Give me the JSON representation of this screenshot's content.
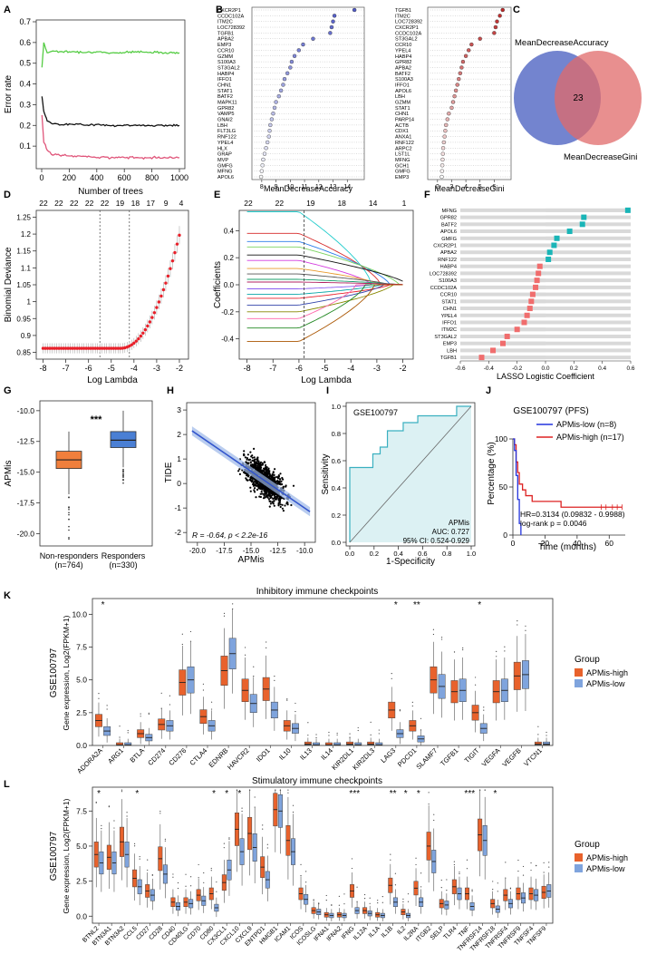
{
  "panels": {
    "A": {
      "label": "A",
      "chart_data": {
        "type": "line",
        "xlabel": "Number of trees",
        "ylabel": "Error rate",
        "xlim": [
          0,
          1000
        ],
        "ylim": [
          0,
          0.7
        ],
        "xticks": [
          "0",
          "200",
          "400",
          "600",
          "800",
          "1000"
        ],
        "yticks": [
          "0.1",
          "0.2",
          "0.3",
          "0.4",
          "0.5",
          "0.6",
          "0.7"
        ],
        "series": [
          {
            "name": "green",
            "color": "#55cc44",
            "values": [
              [
                2,
                0.48
              ],
              [
                15,
                0.6
              ],
              [
                40,
                0.55
              ],
              [
                80,
                0.56
              ],
              [
                150,
                0.555
              ],
              [
                300,
                0.555
              ],
              [
                500,
                0.55
              ],
              [
                700,
                0.555
              ],
              [
                1000,
                0.55
              ]
            ]
          },
          {
            "name": "black",
            "color": "#111111",
            "values": [
              [
                2,
                0.34
              ],
              [
                15,
                0.27
              ],
              [
                40,
                0.22
              ],
              [
                80,
                0.21
              ],
              [
                150,
                0.205
              ],
              [
                300,
                0.205
              ],
              [
                500,
                0.2
              ],
              [
                700,
                0.2
              ],
              [
                1000,
                0.2
              ]
            ]
          },
          {
            "name": "red",
            "color": "#e0557a",
            "values": [
              [
                2,
                0.25
              ],
              [
                15,
                0.12
              ],
              [
                40,
                0.08
              ],
              [
                80,
                0.06
              ],
              [
                150,
                0.055
              ],
              [
                300,
                0.05
              ],
              [
                500,
                0.045
              ],
              [
                700,
                0.045
              ],
              [
                1000,
                0.045
              ]
            ]
          }
        ]
      }
    },
    "B1": {
      "label": "B",
      "chart_data": {
        "type": "scatter",
        "xlabel": "MeanDecreaseAccuracy",
        "xlim": [
          7.5,
          15
        ],
        "xticks": [
          "8",
          "9",
          "10",
          "11",
          "12",
          "13",
          "14"
        ],
        "genes": [
          "CXCR2P1",
          "CCDC102A",
          "ITM2C",
          "LOC728392",
          "TGFB1",
          "APBA2",
          "EMP3",
          "CCR10",
          "GZMM",
          "S100A3",
          "ST3GAL2",
          "HABP4",
          "IFFO1",
          "CHN1",
          "STAT1",
          "BATF2",
          "MAPK11",
          "GPR82",
          "VAMP5",
          "GNAI2",
          "LBH",
          "FLT3LG",
          "RNF122",
          "YPEL4",
          "HLX",
          "GRAP",
          "MVP",
          "GMFG",
          "MFNG",
          "APOL6"
        ],
        "values": [
          14.5,
          13.1,
          13,
          12.9,
          12.8,
          11.6,
          10.9,
          10.6,
          10.3,
          10.1,
          10,
          9.8,
          9.6,
          9.5,
          9.35,
          9.2,
          9,
          8.9,
          8.8,
          8.7,
          8.6,
          8.55,
          8.5,
          8.4,
          8.3,
          8.2,
          8.1,
          8.05,
          8,
          7.95
        ]
      }
    },
    "B2": {
      "chart_data": {
        "type": "scatter",
        "xlabel": "MeanDecreaseGini",
        "xlim": [
          1.5,
          7
        ],
        "xticks": [
          "2",
          "3",
          "4",
          "5",
          "6"
        ],
        "genes": [
          "TGFB1",
          "ITM2C",
          "LOC728392",
          "CXCR2P1",
          "CCDC102A",
          "ST3GAL2",
          "CCR10",
          "YPEL4",
          "HABP4",
          "GPR82",
          "APBA2",
          "BATF2",
          "S100A3",
          "IFFO1",
          "APOL6",
          "LBH",
          "GZMM",
          "STAT1",
          "CHN1",
          "PARP14",
          "ACTB",
          "CDX1",
          "ANXA1",
          "RNF122",
          "ARPC2",
          "LST1L",
          "MFNG",
          "GCH1",
          "GMFG",
          "EMP3"
        ],
        "values": [
          6.6,
          6.4,
          6.2,
          6.1,
          6,
          5,
          4.4,
          4.2,
          4,
          3.8,
          3.7,
          3.6,
          3.5,
          3.4,
          3.3,
          3.2,
          3.1,
          3,
          2.8,
          2.7,
          2.6,
          2.55,
          2.5,
          2.45,
          2.4,
          2.38,
          2.36,
          2.34,
          2.32,
          2.3
        ]
      }
    },
    "C": {
      "label": "C",
      "chart_data": {
        "type": "venn",
        "sets": [
          "MeanDecreaseAccuracy",
          "MeanDecreaseGini"
        ],
        "intersection": "23"
      }
    },
    "D": {
      "label": "D",
      "chart_data": {
        "type": "scatter",
        "xlabel": "Log Lambda",
        "ylabel": "Binomial Deviance",
        "xlim": [
          -8.3,
          -1.6
        ],
        "ylim": [
          0.83,
          1.27
        ],
        "xticks": [
          "-8",
          "-7",
          "-6",
          "-5",
          "-4",
          "-3",
          "-2"
        ],
        "yticks": [
          "0.85",
          "0.9",
          "0.95",
          "1",
          "1.05",
          "1.1",
          "1.15",
          "1.2",
          "1.25"
        ],
        "top_ticks": [
          "22",
          "22",
          "22",
          "22",
          "22",
          "19",
          "18",
          "17",
          "9",
          "4"
        ],
        "vlines": [
          -5.5,
          -4.2
        ]
      }
    },
    "E": {
      "label": "E",
      "chart_data": {
        "type": "line",
        "xlabel": "Log Lambda",
        "ylabel": "Coefficients",
        "xlim": [
          -8.3,
          -1.6
        ],
        "ylim": [
          -0.55,
          0.55
        ],
        "xticks": [
          "-8",
          "-7",
          "-6",
          "-5",
          "-4",
          "-3",
          "-2"
        ],
        "yticks": [
          "-0.4",
          "-0.2",
          "0.0",
          "0.2",
          "0.4"
        ],
        "top_ticks": [
          "22",
          "22",
          "19",
          "18",
          "14",
          "1"
        ],
        "vline": -5.8
      }
    },
    "F": {
      "label": "F",
      "chart_data": {
        "type": "bar",
        "xlabel": "LASSO Logistic Coefficient",
        "xlim": [
          -0.6,
          0.6
        ],
        "xticks": [
          "-0.6",
          "-0.4",
          "-0.2",
          "0.0",
          "0.2",
          "0.4",
          "0.6"
        ],
        "genes": [
          "MFNG",
          "GPR82",
          "BATF2",
          "APOL6",
          "GMFG",
          "CXCR2P1",
          "APBA2",
          "RNF122",
          "HABP4",
          "LOC728392",
          "S100A3",
          "CCDC102A",
          "CCR10",
          "STAT1",
          "CHN1",
          "YPEL4",
          "IFFO1",
          "ITM2C",
          "ST3GAL2",
          "EMP3",
          "LBH",
          "TGFB1"
        ],
        "values": [
          0.58,
          0.27,
          0.26,
          0.17,
          0.08,
          0.06,
          0.03,
          0.02,
          -0.04,
          -0.05,
          -0.06,
          -0.07,
          -0.09,
          -0.1,
          -0.11,
          -0.13,
          -0.15,
          -0.2,
          -0.27,
          -0.3,
          -0.37,
          -0.45
        ]
      }
    },
    "G": {
      "label": "G",
      "chart_data": {
        "type": "box",
        "ylabel": "APMis",
        "ylim": [
          -21,
          -9.2
        ],
        "yticks": [
          "-10.0",
          "-12.5",
          "-15.0",
          "-17.5",
          "-20.0"
        ],
        "categories": [
          "Non-responders",
          "Responders"
        ],
        "ns": [
          "(n=764)",
          "(n=330)"
        ],
        "significance": "***",
        "boxes": [
          {
            "q1": -14.7,
            "median": -14.0,
            "q3": -13.3,
            "lo": -16.8,
            "hi": -11.7,
            "color": "#f07f3c"
          },
          {
            "q1": -13.0,
            "median": -12.4,
            "q3": -11.7,
            "lo": -14.6,
            "hi": -10.0,
            "color": "#4a7fd4"
          }
        ]
      }
    },
    "H": {
      "label": "H",
      "chart_data": {
        "type": "scatter",
        "xlabel": "APMis",
        "ylabel": "TIDE",
        "xlim": [
          -21,
          -9
        ],
        "ylim": [
          -2.4,
          3.3
        ],
        "xticks": [
          "-20.0",
          "-17.5",
          "-15.0",
          "-12.5",
          "-10.0"
        ],
        "yticks": [
          "-2",
          "-1",
          "0",
          "1",
          "2",
          "3"
        ],
        "annotation": "R = -0.64, p < 2.2e-16",
        "fit": {
          "slope": -0.3,
          "intercept": -4.0
        }
      }
    },
    "I": {
      "label": "I",
      "chart_data": {
        "type": "roc",
        "title": "GSE100797",
        "xlabel": "1-Specificity",
        "ylabel": "Sensitivity",
        "xticks": [
          "0.0",
          "0.2",
          "0.4",
          "0.6",
          "0.8",
          "1.0"
        ],
        "yticks": [
          "0.0",
          "0.2",
          "0.4",
          "0.6",
          "0.8",
          "1.0"
        ],
        "legend_name": "APMis",
        "auc": "AUC: 0.727",
        "ci": "95% CI: 0.524-0.929",
        "points": [
          [
            0,
            0
          ],
          [
            0,
            0.55
          ],
          [
            0.19,
            0.55
          ],
          [
            0.19,
            0.65
          ],
          [
            0.25,
            0.65
          ],
          [
            0.25,
            0.7
          ],
          [
            0.31,
            0.7
          ],
          [
            0.31,
            0.82
          ],
          [
            0.44,
            0.82
          ],
          [
            0.44,
            0.88
          ],
          [
            0.56,
            0.88
          ],
          [
            0.56,
            0.93
          ],
          [
            0.88,
            0.93
          ],
          [
            0.88,
            1
          ],
          [
            1,
            1
          ]
        ]
      }
    },
    "J": {
      "label": "J",
      "chart_data": {
        "type": "survival",
        "title": "GSE100797 (PFS)",
        "xlabel": "Time (months)",
        "ylabel": "Percentage (%)",
        "xticks": [
          "0",
          "20",
          "40",
          "60"
        ],
        "yticks": [
          "0",
          "50",
          "100"
        ],
        "legend": [
          "APMis-low (n=8)",
          "APMis-high (n=17)"
        ],
        "hr": "HR=0.3134 (0.09832 - 0.9988)",
        "pval": "log-rank p = 0.0046",
        "low": [
          [
            0,
            100
          ],
          [
            1,
            88
          ],
          [
            2,
            62
          ],
          [
            3,
            37
          ],
          [
            4,
            12
          ],
          [
            5,
            0
          ]
        ],
        "high": [
          [
            0,
            100
          ],
          [
            1,
            94
          ],
          [
            2,
            76
          ],
          [
            3,
            65
          ],
          [
            4,
            53
          ],
          [
            6,
            47
          ],
          [
            8,
            41
          ],
          [
            12,
            35
          ],
          [
            25,
            35
          ],
          [
            30,
            29
          ],
          [
            50,
            29
          ],
          [
            55,
            29
          ],
          [
            68,
            29
          ]
        ]
      }
    },
    "K": {
      "label": "K",
      "title": "Inhibitory immune checkpoints",
      "ylabel1": "GSE100797",
      "ylabel2": "Gene expression, Log2(FPKM+1)",
      "legend_title": "Group",
      "legend": [
        "APMis-high",
        "APMis-low"
      ],
      "chart_data": {
        "type": "box",
        "ylim": [
          0,
          11.2
        ],
        "yticks": [
          "0.0",
          "2.5",
          "5.0",
          "7.5",
          "10.0"
        ],
        "categories": [
          "ADORA2A",
          "ARG1",
          "BTLA",
          "CD274",
          "CD276",
          "CTLA4",
          "EDNRB",
          "HAVCR2",
          "IDO1",
          "IL10",
          "IL13",
          "IL14",
          "KIR2DL1",
          "KIR2DL3",
          "LAG3",
          "PDCD1",
          "SLAMF7",
          "TGFB1",
          "TIGIT",
          "VEGFA",
          "VEGFB",
          "VTCN1"
        ],
        "stars": [
          "*",
          "",
          "",
          "",
          "",
          "",
          "",
          "",
          "",
          "",
          "",
          "",
          "",
          "",
          "*",
          "**",
          "",
          "",
          "*",
          "",
          "",
          ""
        ],
        "high_medians": [
          1.9,
          0.05,
          0.9,
          1.6,
          4.8,
          2.2,
          5.7,
          4.2,
          4.3,
          1.5,
          0.1,
          0.05,
          0.1,
          0.1,
          2.7,
          1.5,
          5.0,
          4.1,
          2.5,
          4.1,
          5.3,
          0.1
        ],
        "low_medians": [
          1.1,
          0.05,
          0.6,
          1.5,
          5.0,
          1.5,
          7.0,
          3.2,
          2.7,
          1.3,
          0.05,
          0.05,
          0.05,
          0.05,
          0.9,
          0.5,
          4.5,
          4.2,
          1.3,
          4.2,
          5.4,
          0.1
        ]
      }
    },
    "L": {
      "label": "L",
      "title": "Stimulatory immune checkpoints",
      "ylabel1": "GSE100797",
      "ylabel2": "Gene expression, Log2(FPKM+1)",
      "legend_title": "Group",
      "legend": [
        "APMis-high",
        "APMis-low"
      ],
      "chart_data": {
        "type": "box",
        "ylim": [
          -0.5,
          9.2
        ],
        "yticks": [
          "0.0",
          "2.5",
          "5.0",
          "7.5"
        ],
        "categories": [
          "BTNL2",
          "BTN3A1",
          "BTN3A2",
          "CCL5",
          "CD27",
          "CD28",
          "CD40",
          "CD40LG",
          "CD70",
          "CD80",
          "CX3CL1",
          "CXCL10",
          "CXCL9",
          "ENTPD1",
          "HMGB1",
          "ICAM1",
          "ICOS",
          "ICOSLG",
          "IFNA1",
          "IFNA2",
          "IFNG",
          "IL12A",
          "IL1A",
          "IL1B",
          "IL2",
          "IL2RA",
          "ITGB2",
          "SELP",
          "TLR4",
          "TNF",
          "TNFRSF14",
          "TNFRSF18",
          "TNFRSF4",
          "TNFRSF9",
          "TNFSF4",
          "TNFSF9"
        ],
        "stars": [
          "*",
          "",
          "",
          "*",
          "",
          "",
          "",
          "",
          "",
          "*",
          "*",
          "*",
          "",
          "",
          "",
          "",
          "",
          "",
          "",
          "",
          "***",
          "",
          "",
          "**",
          "*",
          "*",
          "",
          "",
          "",
          "***",
          "",
          "*",
          "",
          "",
          "",
          ""
        ],
        "high_medians": [
          4.4,
          4.2,
          5.3,
          2.7,
          1.8,
          4.1,
          1.0,
          1.0,
          1.5,
          1.6,
          2.4,
          6.2,
          5.9,
          3.5,
          7.6,
          5.4,
          1.6,
          0.4,
          0.1,
          0.1,
          1.8,
          0.4,
          0.1,
          2.2,
          0.3,
          2.0,
          5.0,
          0.9,
          2.1,
          1.6,
          5.8,
          0.9,
          1.5,
          1.6,
          1.6,
          1.7
        ],
        "low_medians": [
          3.8,
          3.8,
          4.4,
          2.1,
          1.5,
          3.0,
          0.7,
          0.9,
          1.1,
          0.6,
          3.3,
          4.6,
          4.9,
          2.6,
          7.5,
          4.6,
          1.2,
          0.3,
          0.05,
          0.05,
          0.4,
          0.2,
          0.05,
          1.0,
          0.05,
          1.0,
          3.9,
          0.8,
          1.6,
          0.7,
          5.4,
          0.5,
          0.9,
          1.3,
          1.5,
          1.8
        ]
      }
    }
  }
}
